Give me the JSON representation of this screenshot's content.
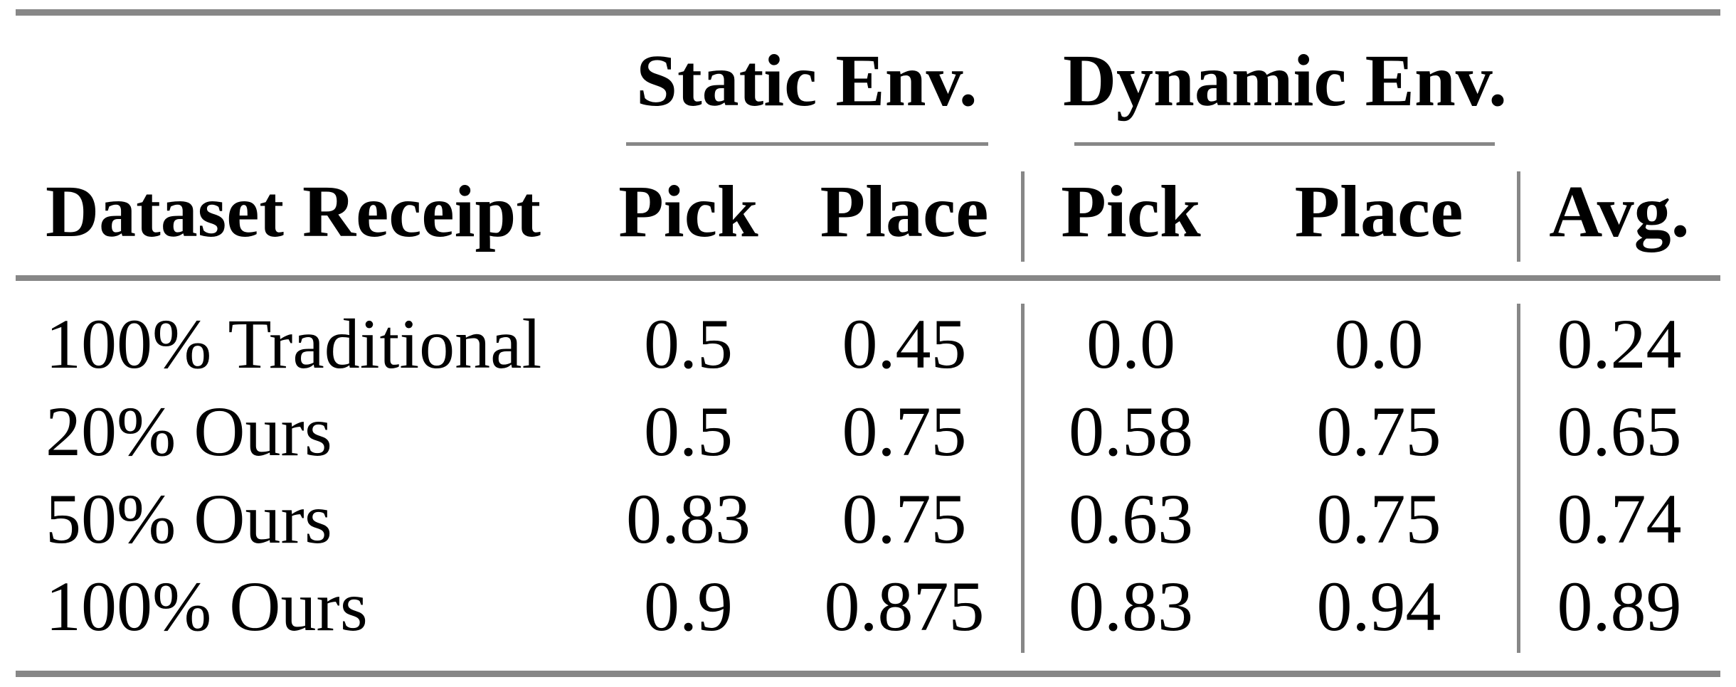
{
  "page": {
    "background": "#ffffff"
  },
  "table": {
    "groups": [
      {
        "label": "Static Env."
      },
      {
        "label": "Dynamic Env."
      }
    ],
    "columns": [
      "Dataset Receipt",
      "Pick",
      "Place",
      "Pick",
      "Place",
      "Avg."
    ],
    "rows": [
      {
        "label": "100% Traditional",
        "values": [
          "0.5",
          "0.45",
          "0.0",
          "0.0",
          "0.24"
        ]
      },
      {
        "label": "20% Ours",
        "values": [
          "0.5",
          "0.75",
          "0.58",
          "0.75",
          "0.65"
        ]
      },
      {
        "label": "50% Ours",
        "values": [
          "0.83",
          "0.75",
          "0.63",
          "0.75",
          "0.74"
        ]
      },
      {
        "label": "100% Ours",
        "values": [
          "0.9",
          "0.875",
          "0.83",
          "0.94",
          "0.89"
        ]
      }
    ],
    "colors": {
      "rule_gray": "#878787",
      "text": "#000000",
      "background": "#ffffff"
    }
  },
  "chart_data": {
    "type": "table",
    "column_groups": [
      "Static Env.",
      "Dynamic Env."
    ],
    "columns": [
      "Dataset Receipt",
      "Static Env. Pick",
      "Static Env. Place",
      "Dynamic Env. Pick",
      "Dynamic Env. Place",
      "Avg."
    ],
    "rows": [
      [
        "100% Traditional",
        0.5,
        0.45,
        0.0,
        0.0,
        0.24
      ],
      [
        "20% Ours",
        0.5,
        0.75,
        0.58,
        0.75,
        0.65
      ],
      [
        "50% Ours",
        0.83,
        0.75,
        0.63,
        0.75,
        0.74
      ],
      [
        "100% Ours",
        0.9,
        0.875,
        0.83,
        0.94,
        0.89
      ]
    ]
  }
}
